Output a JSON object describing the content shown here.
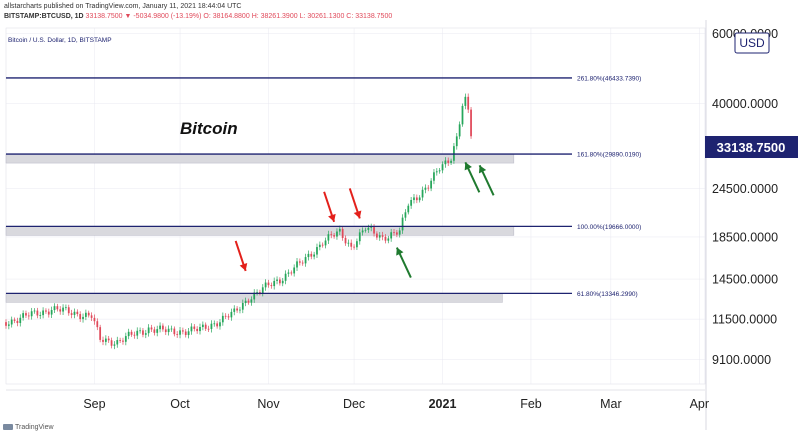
{
  "header": {
    "line1": "allstarcharts published on TradingView.com, January 11, 2021 18:44:04 UTC",
    "symbol": "BITSTAMP:BTCUSD, 1D",
    "quote": "33138.7500 ▼ -5034.9800 (-13.19%)",
    "o": "O: 38164.8800",
    "h": "H: 38261.3900",
    "l": "L: 30261.1300",
    "c": "C: 33138.7500"
  },
  "watermark": "TradingView",
  "chart_data": {
    "type": "candlestick",
    "title": "Bitcoin / U.S. Dollar, 1D, BITSTAMP",
    "annotation": "Bitcoin",
    "currency": "USD",
    "current_price": "33138.7500",
    "yscale": "log",
    "ylim": [
      7900,
      62000
    ],
    "xlim": [
      "2020-08-01",
      "2021-04-03"
    ],
    "y_ticks": [
      "60000.0000",
      "40000.0000",
      "24500.0000",
      "18500.0000",
      "14500.0000",
      "11500.0000",
      "9100.0000"
    ],
    "y_tick_values": [
      60000,
      40000,
      24500,
      18500,
      14500,
      11500,
      9100
    ],
    "x_ticks": [
      {
        "label": "Sep",
        "date": "2020-09-01"
      },
      {
        "label": "Oct",
        "date": "2020-10-01"
      },
      {
        "label": "Nov",
        "date": "2020-11-01"
      },
      {
        "label": "Dec",
        "date": "2020-12-01"
      },
      {
        "label": "2021",
        "date": "2021-01-01",
        "bold": true
      },
      {
        "label": "Feb",
        "date": "2021-02-01"
      },
      {
        "label": "Mar",
        "date": "2021-03-01"
      },
      {
        "label": "Apr",
        "date": "2021-04-01"
      }
    ],
    "fib_levels": [
      {
        "label": "261.80%(46433.7390)",
        "value": 46433.739,
        "zone": false
      },
      {
        "label": "161.80%(29890.0190)",
        "value": 29890.019,
        "zone": true,
        "zone_end": "2021-01-26"
      },
      {
        "label": "100.00%(19666.0000)",
        "value": 19666.0,
        "zone": true,
        "zone_end": "2021-01-26"
      },
      {
        "label": "61.80%(13346.2990)",
        "value": 13346.299,
        "zone": true,
        "zone_end": "2021-01-22"
      }
    ],
    "price_path": [
      [
        "2020-08-01",
        11300
      ],
      [
        "2020-08-17",
        12200
      ],
      [
        "2020-08-31",
        11700
      ],
      [
        "2020-09-03",
        10200
      ],
      [
        "2020-09-09",
        10100
      ],
      [
        "2020-09-20",
        10900
      ],
      [
        "2020-09-27",
        10700
      ],
      [
        "2020-10-08",
        10800
      ],
      [
        "2020-10-20",
        11900
      ],
      [
        "2020-10-25",
        13000
      ],
      [
        "2020-10-31",
        13800
      ],
      [
        "2020-11-05",
        14500
      ],
      [
        "2020-11-13",
        16000
      ],
      [
        "2020-11-20",
        18000
      ],
      [
        "2020-11-26",
        19000
      ],
      [
        "2020-11-30",
        17500
      ],
      [
        "2020-12-05",
        19400
      ],
      [
        "2020-12-11",
        18500
      ],
      [
        "2020-12-17",
        19000
      ],
      [
        "2020-12-20",
        22500
      ],
      [
        "2020-12-27",
        24800
      ],
      [
        "2020-12-31",
        27500
      ],
      [
        "2021-01-04",
        29500
      ],
      [
        "2021-01-06",
        33000
      ],
      [
        "2021-01-08",
        39500
      ],
      [
        "2021-01-09",
        40500
      ],
      [
        "2021-01-10",
        38164.88
      ],
      [
        "2021-01-11",
        33138.75
      ]
    ],
    "arrows": [
      {
        "color": "red",
        "date": "2020-10-24",
        "value": 15200,
        "direction": "down"
      },
      {
        "color": "red",
        "date": "2020-11-24",
        "value": 20200,
        "direction": "down"
      },
      {
        "color": "red",
        "date": "2020-12-03",
        "value": 20600,
        "direction": "down"
      },
      {
        "color": "green",
        "date": "2020-12-16",
        "value": 17400,
        "direction": "up"
      },
      {
        "color": "green",
        "date": "2021-01-09",
        "value": 28500,
        "direction": "up"
      },
      {
        "color": "green",
        "date": "2021-01-14",
        "value": 28000,
        "direction": "up"
      }
    ]
  },
  "colors": {
    "up": "#26a65b",
    "down": "#e0495a",
    "fib": "#1e2370",
    "zone": "#d9d9de",
    "arrow_red": "#e3201b",
    "arrow_green": "#1f7a2f",
    "price_label_bg": "#1e2370",
    "grid": "#e8e8f0"
  }
}
